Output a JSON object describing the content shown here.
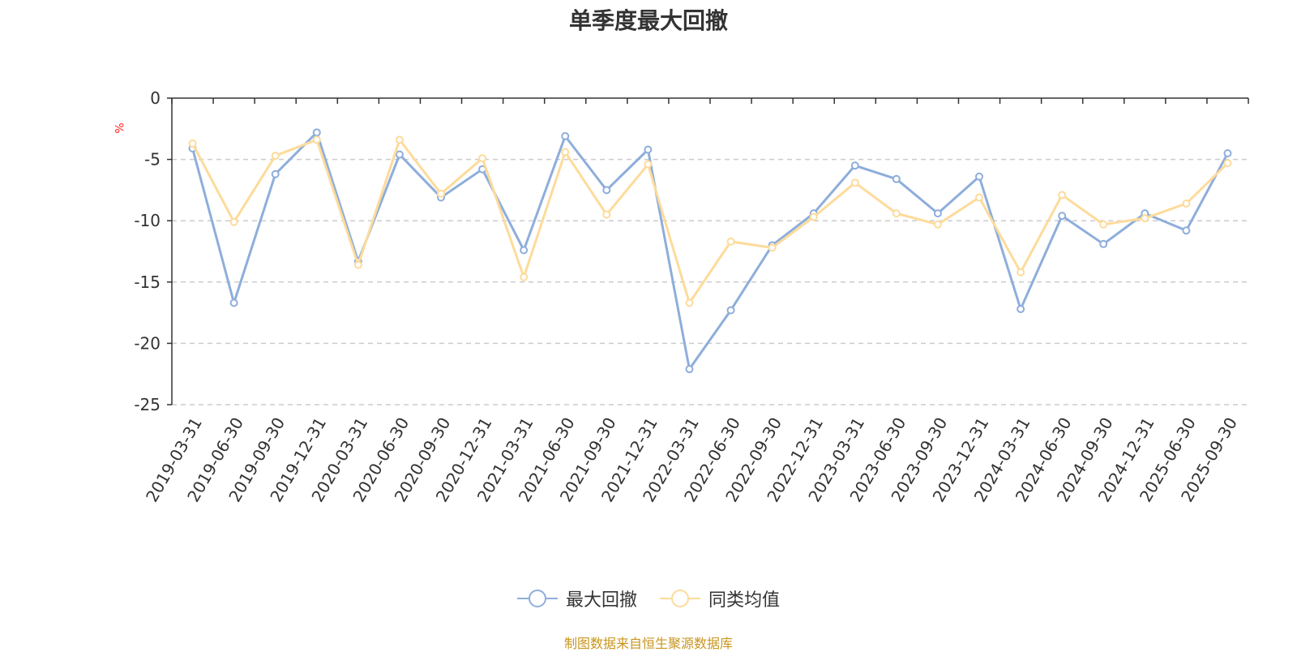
{
  "chart_data": {
    "type": "line",
    "title": "单季度最大回撤",
    "ylabel": "%",
    "ylim": [
      -25,
      0
    ],
    "yticks": [
      0,
      -5,
      -10,
      -15,
      -20,
      -25
    ],
    "grid": true,
    "legend_position": "bottom-center",
    "categories": [
      "2019-03-31",
      "2019-06-30",
      "2019-09-30",
      "2019-12-31",
      "2020-03-31",
      "2020-06-30",
      "2020-09-30",
      "2020-12-31",
      "2021-03-31",
      "2021-06-30",
      "2021-09-30",
      "2021-12-31",
      "2022-03-31",
      "2022-06-30",
      "2022-09-30",
      "2022-12-31",
      "2023-03-31",
      "2023-06-30",
      "2023-09-30",
      "2023-12-31",
      "2024-03-31",
      "2024-06-30",
      "2024-09-30",
      "2024-12-31",
      "2025-06-30",
      "2025-09-30"
    ],
    "series": [
      {
        "name": "最大回撤",
        "color": "#8eaedb",
        "values": [
          -4.1,
          -16.7,
          -6.2,
          -2.8,
          -13.3,
          -4.6,
          -8.1,
          -5.8,
          -12.4,
          -3.1,
          -7.5,
          -4.2,
          -22.1,
          -17.3,
          -12.0,
          -9.4,
          -5.5,
          -6.6,
          -9.4,
          -6.4,
          -17.2,
          -9.6,
          -11.9,
          -9.4,
          -10.8,
          -4.5
        ]
      },
      {
        "name": "同类均值",
        "color": "#fddb9b",
        "values": [
          -3.7,
          -10.1,
          -4.7,
          -3.4,
          -13.6,
          -3.4,
          -7.8,
          -4.9,
          -14.6,
          -4.4,
          -9.5,
          -5.4,
          -16.7,
          -11.7,
          -12.2,
          -9.7,
          -6.9,
          -9.4,
          -10.3,
          -8.1,
          -14.2,
          -7.9,
          -10.3,
          -9.8,
          -8.6,
          -5.3
        ]
      }
    ]
  },
  "legend": {
    "items": [
      "最大回撤",
      "同类均值"
    ]
  },
  "footer": {
    "source": "制图数据来自恒生聚源数据库"
  }
}
